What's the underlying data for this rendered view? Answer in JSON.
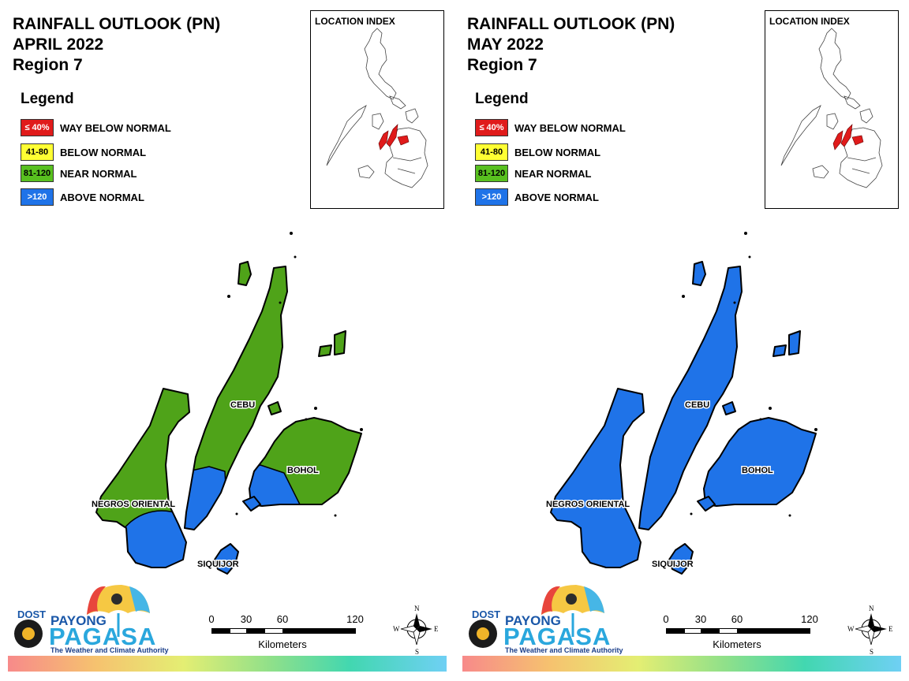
{
  "colors": {
    "way_below_normal": "#e01b1b",
    "below_normal": "#ffff00",
    "near_normal": "#4fa319",
    "above_normal": "#1f73e8"
  },
  "panels": [
    {
      "title_line1": "RAINFALL OUTLOOK (PN)",
      "title_line2": "APRIL 2022",
      "title_line3": "Region 7",
      "legend_title": "Legend",
      "legend": [
        {
          "code": "≤ 40%",
          "label": "WAY BELOW NORMAL",
          "color": "#e01b1b"
        },
        {
          "code": "41-80",
          "label": "BELOW NORMAL",
          "color": "#ffff33"
        },
        {
          "code": "81-120",
          "label": "NEAR NORMAL",
          "color": "#58c01f"
        },
        {
          "code": ">120",
          "label": "ABOVE NORMAL",
          "color": "#1f73e8"
        }
      ],
      "location_index_title": "LOCATION INDEX",
      "provinces": {
        "cebu": {
          "label": "CEBU",
          "category": "NEAR NORMAL (south tip ABOVE NORMAL)"
        },
        "bohol": {
          "label": "BOHOL",
          "category": "NEAR NORMAL (west part ABOVE NORMAL)"
        },
        "negros_oriental": {
          "label": "NEGROS ORIENTAL",
          "category": "NEAR NORMAL (south part ABOVE NORMAL)"
        },
        "siquijor": {
          "label": "SIQUIJOR",
          "category": "ABOVE NORMAL"
        }
      },
      "logo": {
        "dost": "DOST",
        "payong": "PAYONG",
        "pagasa": "PAGASA",
        "tagline": "The Weather and Climate Authority"
      },
      "scalebar": {
        "ticks": [
          "0",
          "30",
          "60",
          "120"
        ],
        "unit": "Kilometers"
      },
      "compass": {
        "n": "N",
        "s": "S",
        "e": "E",
        "w": "W"
      }
    },
    {
      "title_line1": "RAINFALL OUTLOOK (PN)",
      "title_line2": "MAY 2022",
      "title_line3": "Region 7",
      "legend_title": "Legend",
      "legend": [
        {
          "code": "≤ 40%",
          "label": "WAY BELOW NORMAL",
          "color": "#e01b1b"
        },
        {
          "code": "41-80",
          "label": "BELOW NORMAL",
          "color": "#ffff33"
        },
        {
          "code": "81-120",
          "label": "NEAR NORMAL",
          "color": "#58c01f"
        },
        {
          "code": ">120",
          "label": "ABOVE NORMAL",
          "color": "#1f73e8"
        }
      ],
      "location_index_title": "LOCATION INDEX",
      "provinces": {
        "cebu": {
          "label": "CEBU",
          "category": "ABOVE NORMAL"
        },
        "bohol": {
          "label": "BOHOL",
          "category": "ABOVE NORMAL"
        },
        "negros_oriental": {
          "label": "NEGROS ORIENTAL",
          "category": "ABOVE NORMAL"
        },
        "siquijor": {
          "label": "SIQUIJOR",
          "category": "ABOVE NORMAL"
        }
      },
      "logo": {
        "dost": "DOST",
        "payong": "PAYONG",
        "pagasa": "PAGASA",
        "tagline": "The Weather and Climate Authority"
      },
      "scalebar": {
        "ticks": [
          "0",
          "30",
          "60",
          "120"
        ],
        "unit": "Kilometers"
      },
      "compass": {
        "n": "N",
        "s": "S",
        "e": "E",
        "w": "W"
      }
    }
  ]
}
